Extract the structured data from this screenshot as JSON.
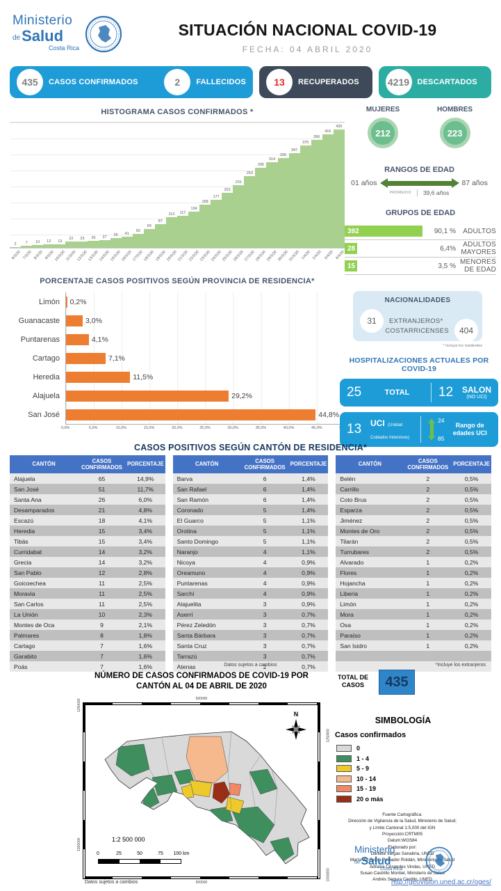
{
  "colors": {
    "primary_blue": "#1E9CD7",
    "dark_slate": "#3E4A59",
    "teal": "#2CADA4",
    "accent_red": "#E8262A",
    "hist_green": "#A9D08E",
    "orange": "#ED7D31",
    "group_green": "#92D050",
    "table_header_blue": "#4472C4",
    "total_box_blue": "#2E86C8"
  },
  "header": {
    "logo": {
      "word1": "Ministerio",
      "word2_small": "de",
      "word2": "Salud",
      "word3": "Costa Rica"
    },
    "title": "SITUACIÓN NACIONAL COVID-19",
    "date": "FECHA: 04  ABRIL 2020"
  },
  "summary_cards": {
    "confirmados": {
      "value": "435",
      "label": "CASOS CONFIRMADOS"
    },
    "fallecidos": {
      "value": "2",
      "label": "FALLECIDOS"
    },
    "recuperados": {
      "value": "13",
      "label": "RECUPERADOS"
    },
    "descartados": {
      "value": "4219",
      "label": "DESCARTADOS"
    }
  },
  "chart_data": [
    {
      "type": "area",
      "title": "HISTOGRAMA CASOS CONFIRMADOS *",
      "x": [
        "6/3/20",
        "7/3/20",
        "8/3/20",
        "9/3/20",
        "10/3/20",
        "11/3/20",
        "12/3/20",
        "13/3/20",
        "14/3/20",
        "15/3/20",
        "16/3/20",
        "17/3/20",
        "18/3/20",
        "19/3/20",
        "20/3/20",
        "21/3/20",
        "22/3/20",
        "23/3/20",
        "24/3/20",
        "25/3/20",
        "26/3/20",
        "27/3/20",
        "28/3/20",
        "29/3/20",
        "30/3/20",
        "31/3/20",
        "1/4/20",
        "2/4/20",
        "3/4/20",
        "4/4/20"
      ],
      "values": [
        2,
        7,
        10,
        12,
        13,
        22,
        23,
        26,
        27,
        35,
        41,
        50,
        69,
        87,
        113,
        117,
        134,
        158,
        177,
        201,
        231,
        263,
        295,
        314,
        330,
        347,
        375,
        396,
        416,
        435
      ],
      "ylim": [
        0,
        435
      ],
      "grid": true,
      "legend_position": "none"
    },
    {
      "type": "bar",
      "orientation": "horizontal",
      "title": "PORCENTAJE CASOS POSITIVOS SEGÚN PROVINCIA DE RESIDENCIA*",
      "categories": [
        "Limón",
        "Guanacaste",
        "Puntarenas",
        "Cartago",
        "Heredia",
        "Alajuela",
        "San José"
      ],
      "values": [
        0.2,
        3.0,
        4.1,
        7.1,
        11.5,
        29.2,
        44.8
      ],
      "value_labels": [
        "0,2%",
        "3,0%",
        "4,1%",
        "7,1%",
        "11,5%",
        "29,2%",
        "44,8%"
      ],
      "xlim": [
        0,
        50
      ],
      "ticks": [
        "0,0%",
        "5,0%",
        "10,0%",
        "15,0%",
        "20,0%",
        "25,0%",
        "30,0%",
        "35,0%",
        "40,0%",
        "45,0%",
        "50,0%"
      ],
      "grid": true,
      "legend_position": "none"
    }
  ],
  "gender": {
    "female_label": "MUJERES",
    "female_value": "212",
    "male_label": "HOMBRES",
    "male_value": "223"
  },
  "age_range": {
    "title": "RANGOS DE EDAD",
    "min": "01 años",
    "max": "87 años",
    "avg_label": "PROMEDIO",
    "avg_value": "39,6 años"
  },
  "age_groups": {
    "title": "GRUPOS DE EDAD",
    "rows": [
      {
        "count": "392",
        "pct": "90,1 %",
        "label": "ADULTOS"
      },
      {
        "count": "28",
        "pct": "6,4%",
        "label": "ADULTOS MAYORES"
      },
      {
        "count": "15",
        "pct": "3,5 %",
        "label": "MENORES DE EDAD"
      }
    ]
  },
  "nationalities": {
    "title": "NACIONALIDADES",
    "foreign_value": "31",
    "foreign_label": "EXTRANJEROS*",
    "local_label": "COSTARRICENSES",
    "local_value": "404",
    "footnote": "* Incluye los residentes"
  },
  "hospitalizations": {
    "title": "HOSPITALIZACIONES ACTUALES POR COVID-19",
    "total_value": "25",
    "total_label": "TOTAL",
    "salon_value": "12",
    "salon_label": "SALON",
    "salon_sublabel": "(NO UCI)",
    "uci_value": "13",
    "uci_label": "UCI",
    "uci_sublabel": "(Unidad Cuidados Intensivos)",
    "uci_age_min": "24",
    "uci_age_max": "85",
    "uci_range_label": "Rango de edades UCI"
  },
  "canton_section": {
    "title": "CASOS POSITIVOS SEGÚN CANTÓN DE RESIDENCIA*",
    "headers": [
      "CANTÓN",
      "CASOS CONFIRMADOS",
      "PORCENTAJE"
    ],
    "tables": [
      [
        [
          "Alajuela",
          "65",
          "14,9%"
        ],
        [
          "San José",
          "51",
          "11,7%"
        ],
        [
          "Santa Ana",
          "26",
          "6,0%"
        ],
        [
          "Desamparados",
          "21",
          "4,8%"
        ],
        [
          "Escazú",
          "18",
          "4,1%"
        ],
        [
          "Heredia",
          "15",
          "3,4%"
        ],
        [
          "Tibás",
          "15",
          "3,4%"
        ],
        [
          "Curridabat",
          "14",
          "3,2%"
        ],
        [
          "Grecia",
          "14",
          "3,2%"
        ],
        [
          "San Pablo",
          "12",
          "2,8%"
        ],
        [
          "Goicoechea",
          "11",
          "2,5%"
        ],
        [
          "Moravia",
          "11",
          "2,5%"
        ],
        [
          "San Carlos",
          "11",
          "2,5%"
        ],
        [
          "La Unión",
          "10",
          "2,3%"
        ],
        [
          "Montes de Oca",
          "9",
          "2,1%"
        ],
        [
          "Palmares",
          "8",
          "1,8%"
        ],
        [
          "Cartago",
          "7",
          "1,6%"
        ],
        [
          "Garabito",
          "7",
          "1,6%"
        ],
        [
          "Poás",
          "7",
          "1,6%"
        ]
      ],
      [
        [
          "Barva",
          "6",
          "1,4%"
        ],
        [
          "San Rafael",
          "6",
          "1,4%"
        ],
        [
          "San Ramón",
          "6",
          "1,4%"
        ],
        [
          "Coronado",
          "5",
          "1,4%"
        ],
        [
          "El Guarco",
          "5",
          "1,1%"
        ],
        [
          "Orotina",
          "5",
          "1,1%"
        ],
        [
          "Santo Domingo",
          "5",
          "1,1%"
        ],
        [
          "Naranjo",
          "4",
          "1,1%"
        ],
        [
          "Nicoya",
          "4",
          "0,9%"
        ],
        [
          "Oreamuno",
          "4",
          "0,9%"
        ],
        [
          "Puntarenas",
          "4",
          "0,9%"
        ],
        [
          "Sarchí",
          "4",
          "0,9%"
        ],
        [
          "Alajuelita",
          "3",
          "0,9%"
        ],
        [
          "Aserrí",
          "3",
          "0,7%"
        ],
        [
          "Pérez Zeledón",
          "3",
          "0,7%"
        ],
        [
          "Santa Bárbara",
          "3",
          "0,7%"
        ],
        [
          "Santa Cruz",
          "3",
          "0,7%"
        ],
        [
          "Tarrazú",
          "3",
          "0,7%"
        ],
        [
          "Atenas",
          "2",
          "0,7%"
        ]
      ],
      [
        [
          "Belén",
          "2",
          "0,5%"
        ],
        [
          "Carrillo",
          "2",
          "0,5%"
        ],
        [
          "Coto Brus",
          "2",
          "0,5%"
        ],
        [
          "Esparza",
          "2",
          "0,5%"
        ],
        [
          "Jiménez",
          "2",
          "0,5%"
        ],
        [
          "Montes de Oro",
          "2",
          "0,5%"
        ],
        [
          "Tilarán",
          "2",
          "0,5%"
        ],
        [
          "Turrubares",
          "2",
          "0,5%"
        ],
        [
          "Alvarado",
          "1",
          "0,2%"
        ],
        [
          "Flores",
          "1",
          "0,2%"
        ],
        [
          "Hojancha",
          "1",
          "0,2%"
        ],
        [
          "Liberia",
          "1",
          "0,2%"
        ],
        [
          "Limón",
          "1",
          "0,2%"
        ],
        [
          "Mora",
          "1",
          "0,2%"
        ],
        [
          "Osa",
          "1",
          "0,2%"
        ],
        [
          "Paraíso",
          "1",
          "0,2%"
        ],
        [
          "San Isidro",
          "1",
          "0,2%"
        ],
        [
          "",
          "",
          ""
        ],
        [
          "",
          "",
          ""
        ]
      ]
    ],
    "footnote_mid": "Datos sujetos a cambios",
    "footnote_right": "*Incluye los extranjeros"
  },
  "map_section": {
    "title_line1": "NÚMERO DE CASOS CONFIRMADOS DE COVID-19 POR",
    "title_line2": "CANTÓN AL 04 DE ABRIL DE 2020",
    "total_label_line1": "TOTAL DE",
    "total_label_line2": "CASOS",
    "total_value": "435",
    "north_label": "N",
    "scale_text": "1:2 500 000",
    "scale_ticks": [
      "0",
      "25",
      "50",
      "75",
      "100 km"
    ],
    "coord_top": "500000",
    "coord_bottom": "500000",
    "coord_left_top": "1250000",
    "coord_left_bottom": "1000000",
    "coord_right_top": "1250000",
    "coord_right_bottom": "1000000",
    "data_note": "Datos sujetos a cambios",
    "legend": {
      "title": "SIMBOLOGÍA",
      "subtitle": "Casos confirmados",
      "items": [
        {
          "label": "0",
          "color": "#D9D9D9"
        },
        {
          "label": "1 - 4",
          "color": "#3E8E5E"
        },
        {
          "label": "5 - 9",
          "color": "#EDC92C"
        },
        {
          "label": "10 - 14",
          "color": "#F6B98E"
        },
        {
          "label": "15 - 19",
          "color": "#F08A66"
        },
        {
          "label": "20 o más",
          "color": "#9A2D15"
        }
      ]
    },
    "credits": [
      "Fuente Cartográfica:",
      "Dirección de Vigilancia de la Salud, Ministerio de Salud;",
      "y  Límite Cantonal 1:5,000 del IGN",
      "Proyección:CRTM05",
      "Datum:WGS84",
      "Elaborado por:",
      "Daniela Vargas Sanabria, UNED",
      "María del Rocío Peinador Roldán, Ministerio de Salud",
      "Adriana Céspedes Vindas, UNED",
      "Susan Castrillo Montiel, Ministerio de Salud",
      "Andrés Segura Castillo, UNED"
    ],
    "url": "http://geovision.uned.ac.cr/oges/"
  }
}
